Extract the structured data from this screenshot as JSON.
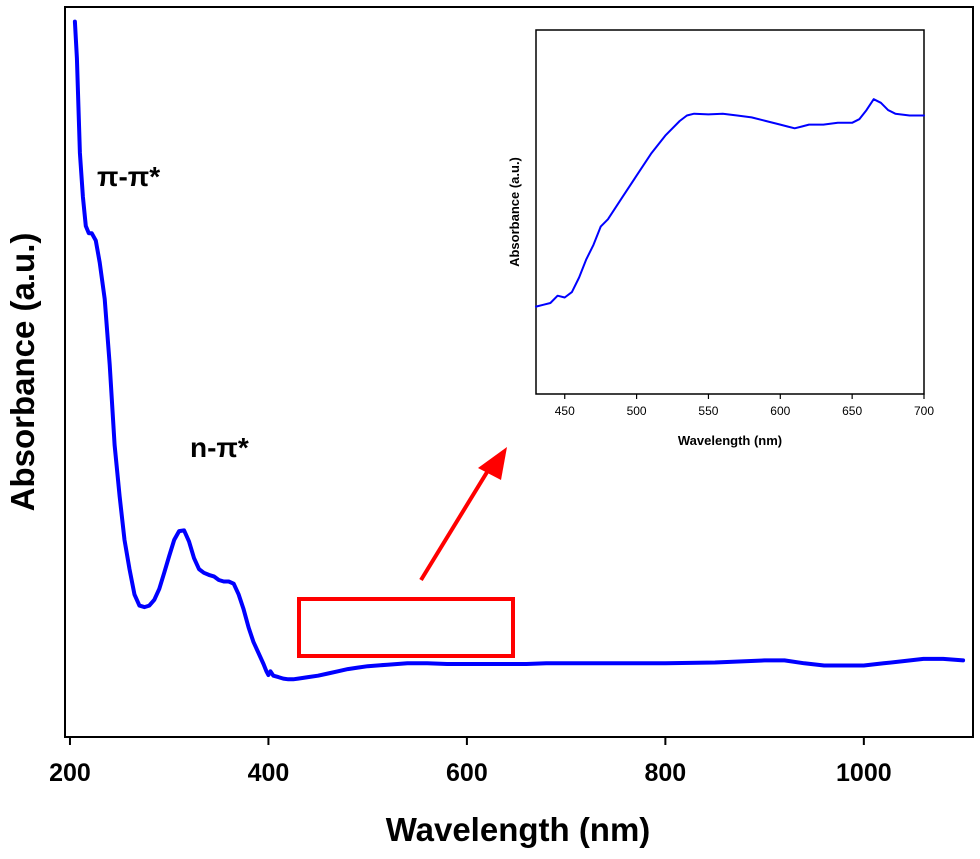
{
  "chart_data": [
    {
      "type": "line",
      "xlabel": "Wavelength (nm)",
      "ylabel": "Absorbance (a.u.)",
      "xlim": [
        195,
        1110
      ],
      "ylim": [
        0,
        1.0
      ],
      "x_ticks": [
        200,
        400,
        600,
        800,
        1000
      ],
      "y_ticks": [],
      "grid": false,
      "series": [
        {
          "color": "#0000ff",
          "x": [
            205,
            207,
            210,
            213,
            216,
            219,
            222,
            226,
            230,
            235,
            240,
            245,
            250,
            255,
            260,
            265,
            270,
            275,
            280,
            285,
            290,
            295,
            300,
            305,
            310,
            315,
            320,
            325,
            330,
            335,
            340,
            345,
            350,
            355,
            360,
            365,
            370,
            375,
            380,
            385,
            390,
            395,
            398,
            400,
            402,
            405,
            410,
            415,
            420,
            425,
            430,
            440,
            450,
            460,
            470,
            480,
            490,
            500,
            520,
            540,
            560,
            580,
            600,
            620,
            640,
            660,
            680,
            700,
            750,
            800,
            850,
            900,
            920,
            940,
            960,
            980,
            1000,
            1020,
            1040,
            1060,
            1080,
            1100
          ],
          "values": [
            0.98,
            0.93,
            0.8,
            0.74,
            0.7,
            0.69,
            0.69,
            0.68,
            0.65,
            0.6,
            0.51,
            0.4,
            0.33,
            0.27,
            0.23,
            0.195,
            0.18,
            0.178,
            0.18,
            0.188,
            0.203,
            0.225,
            0.248,
            0.27,
            0.282,
            0.283,
            0.268,
            0.245,
            0.23,
            0.225,
            0.222,
            0.22,
            0.215,
            0.213,
            0.213,
            0.21,
            0.195,
            0.175,
            0.15,
            0.13,
            0.115,
            0.1,
            0.09,
            0.085,
            0.09,
            0.084,
            0.082,
            0.08,
            0.079,
            0.079,
            0.08,
            0.082,
            0.084,
            0.087,
            0.09,
            0.093,
            0.095,
            0.097,
            0.099,
            0.101,
            0.101,
            0.1,
            0.1,
            0.1,
            0.1,
            0.1,
            0.101,
            0.101,
            0.101,
            0.101,
            0.102,
            0.105,
            0.105,
            0.101,
            0.098,
            0.098,
            0.098,
            0.101,
            0.104,
            0.107,
            0.107,
            0.105
          ]
        }
      ],
      "annotations": [
        "π-π*",
        "n-π*"
      ]
    },
    {
      "type": "line",
      "xlabel": "Wavelength (nm)",
      "ylabel": "Absorbance (a.u.)",
      "xlim": [
        430,
        700
      ],
      "ylim": [
        0,
        1.0
      ],
      "x_ticks": [
        450,
        500,
        550,
        600,
        650,
        700
      ],
      "y_ticks": [],
      "grid": false,
      "series": [
        {
          "color": "#0000ff",
          "x": [
            430,
            435,
            440,
            445,
            450,
            455,
            460,
            465,
            470,
            475,
            480,
            490,
            500,
            510,
            520,
            530,
            535,
            540,
            550,
            560,
            570,
            580,
            590,
            600,
            605,
            610,
            615,
            620,
            630,
            640,
            650,
            655,
            660,
            665,
            670,
            675,
            680,
            690,
            700
          ],
          "values": [
            0.24,
            0.245,
            0.25,
            0.27,
            0.265,
            0.28,
            0.32,
            0.37,
            0.41,
            0.46,
            0.48,
            0.54,
            0.6,
            0.66,
            0.71,
            0.75,
            0.765,
            0.77,
            0.768,
            0.77,
            0.765,
            0.76,
            0.75,
            0.74,
            0.735,
            0.73,
            0.735,
            0.74,
            0.74,
            0.745,
            0.745,
            0.755,
            0.78,
            0.81,
            0.8,
            0.78,
            0.77,
            0.765,
            0.765
          ]
        }
      ]
    }
  ]
}
